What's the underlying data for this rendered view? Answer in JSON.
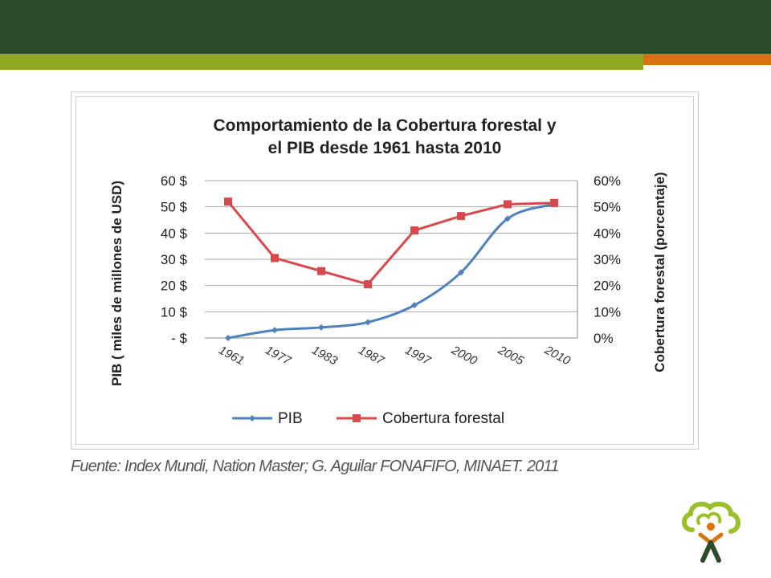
{
  "slide": {
    "colors": {
      "top_bar": "#2d4a2d",
      "green_bar": "#8faa1f",
      "orange_bar": "#d9730e"
    },
    "source_note": "Fuente: Index Mundi, Nation Master; G. Aguilar FONAFIFO, MINAET. 2011",
    "logo_icon": "tree-person-logo"
  },
  "chart_data": {
    "type": "line",
    "title_line1": "Comportamiento de la Cobertura forestal y",
    "title_line2": "el PIB desde 1961 hasta 2010",
    "categories": [
      "1961",
      "1977",
      "1983",
      "1987",
      "1997",
      "2000",
      "2005",
      "2010"
    ],
    "ylabel_left": "PIB ( miles de millones de USD)",
    "ylabel_right": "Cobertura forestal (porcentaje)",
    "left_axis": {
      "ylim": [
        0,
        60
      ],
      "ticks": [
        "- $",
        "10 $",
        "20 $",
        "30 $",
        "40 $",
        "50 $",
        "60 $"
      ]
    },
    "right_axis": {
      "ylim": [
        0,
        0.6
      ],
      "ticks": [
        "0%",
        "10%",
        "20%",
        "30%",
        "40%",
        "50%",
        "60%"
      ]
    },
    "series": [
      {
        "name": "PIB",
        "axis": "left",
        "color": "#4f81bd",
        "marker": "diamond",
        "values": [
          0,
          3,
          4,
          6,
          12.5,
          25,
          45.5,
          51
        ]
      },
      {
        "name": "Cobertura forestal",
        "axis": "right",
        "color": "#d9494b",
        "marker": "square",
        "values": [
          0.52,
          0.305,
          0.255,
          0.205,
          0.41,
          0.465,
          0.51,
          0.515
        ]
      }
    ],
    "legend_position": "bottom",
    "grid": true
  }
}
